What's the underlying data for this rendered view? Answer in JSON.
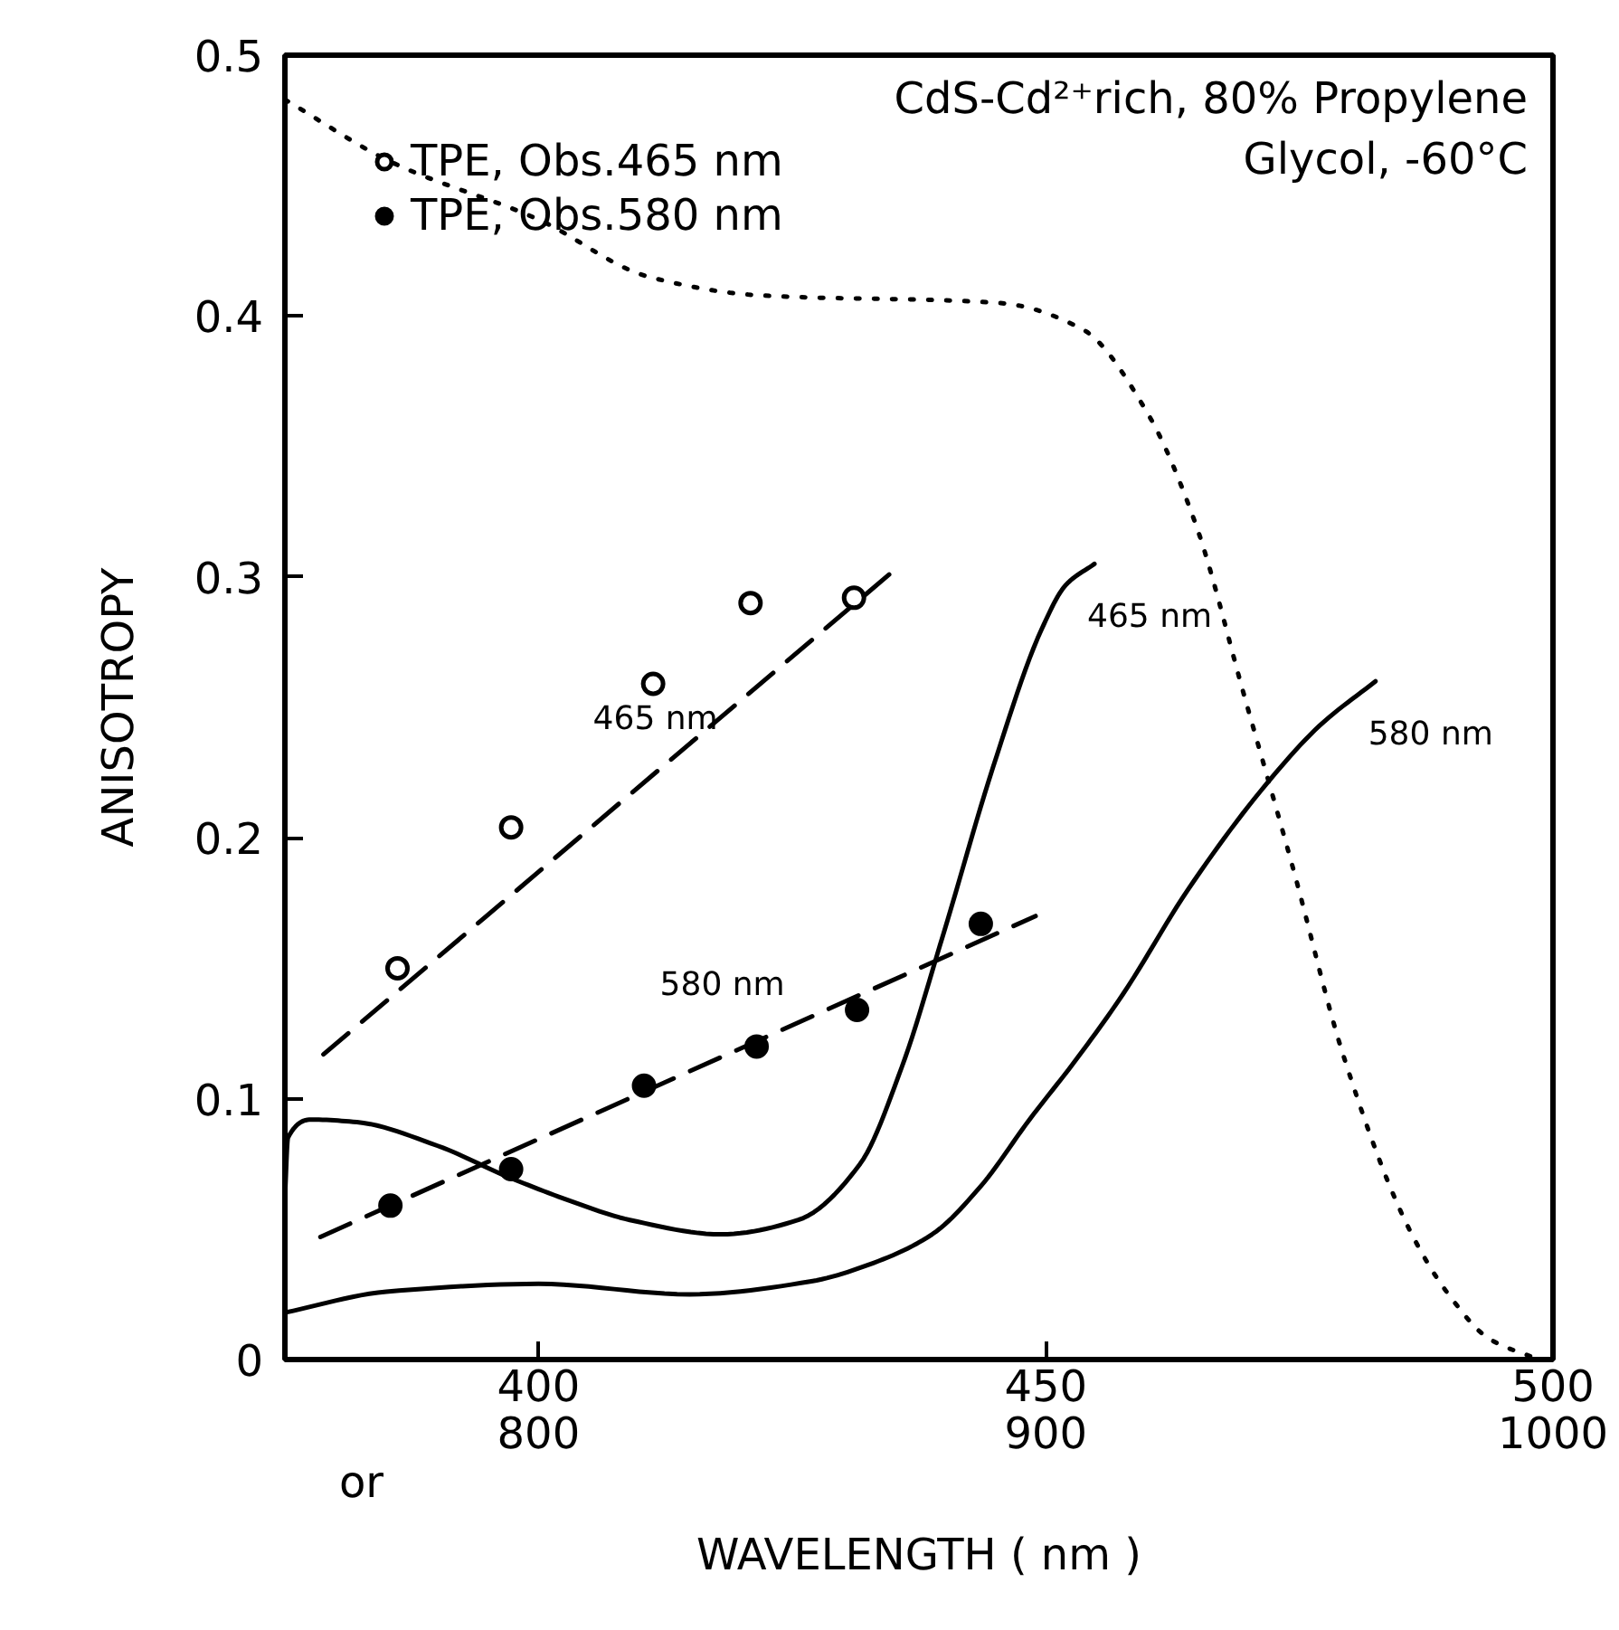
{
  "chart_data": {
    "type": "line",
    "xlabel": "WAVELENGTH ( nm )",
    "ylabel": "ANISOTROPY",
    "xlim": [
      375,
      500
    ],
    "xticks": [
      400,
      450,
      500
    ],
    "ylim": [
      0,
      0.5
    ],
    "yticks": [
      0,
      0.1,
      0.2,
      0.3,
      0.4,
      0.5
    ],
    "x2lim": [
      750,
      1000
    ],
    "x2ticks": [
      800,
      900,
      1000
    ],
    "grid": false,
    "legend": "top left",
    "annotations": [
      "CdS-Cd²⁺rich, 80% Propylene\nGlycol, -60°C",
      "or"
    ],
    "series": [
      {
        "type": "scatter",
        "name": "TPE, Obs.465 nm",
        "color": "#ffffff",
        "marker": "circle",
        "x": [
          386.1,
          397.3,
          411.3,
          420.9,
          431.1
        ],
        "values": [
          0.15,
          0.204,
          0.259,
          0.29,
          0.292
        ]
      },
      {
        "type": "scatter",
        "name": "TPE, Obs.580 nm",
        "color": "#000000",
        "marker": "circle",
        "x": [
          385.4,
          397.3,
          410.4,
          421.5,
          431.4,
          443.6
        ],
        "values": [
          0.059,
          0.073,
          0.105,
          0.12,
          0.134,
          0.167
        ]
      },
      {
        "name": "465 nm",
        "color": "#000000",
        "line_style": "dashed",
        "x": [
          378.8,
          435.5
        ],
        "values": [
          0.117,
          0.304
        ]
      },
      {
        "name": "580 nm",
        "color": "#000000",
        "line_style": "dashed",
        "x": [
          378.5,
          449.0
        ],
        "values": [
          0.047,
          0.17
        ]
      },
      {
        "name": "465 nm",
        "color": "#000000",
        "line_style": "solid",
        "x": [
          375.0,
          375.3,
          377.6,
          382.1,
          390,
          397,
          403,
          409,
          418,
          425.6,
          431.7,
          435.8,
          439.9,
          444.8,
          449.6,
          452,
          454.8
        ],
        "values": [
          0.062,
          0.085,
          0.092,
          0.091,
          0.082,
          0.07,
          0.061,
          0.0535,
          0.048,
          0.0535,
          0.075,
          0.112,
          0.163,
          0.227,
          0.28,
          0.297,
          0.305
        ]
      },
      {
        "name": "580 nm",
        "color": "#000000",
        "line_style": "solid",
        "x": [
          375.0,
          385,
          400,
          414.9,
          426.9,
          433,
          438.8,
          443.5,
          448.4,
          453,
          457.6,
          464,
          471.2,
          477,
          482.5
        ],
        "values": [
          0.018,
          0.026,
          0.029,
          0.025,
          0.03,
          0.037,
          0.048,
          0.066,
          0.092,
          0.115,
          0.14,
          0.18,
          0.218,
          0.243,
          0.26
        ]
      },
      {
        "color": "#000000",
        "line_style": "dotted",
        "x": [
          375.0,
          385.5,
          400,
          410.9,
          421.5,
          445.5,
          453.6,
          460,
          464.8,
          469.6,
          474.4,
          479.3,
          485.7,
          489.7,
          493.7,
          498.6
        ],
        "values": [
          0.483,
          0.459,
          0.437,
          0.415,
          0.408,
          0.405,
          0.395,
          0.363,
          0.32,
          0.254,
          0.188,
          0.117,
          0.051,
          0.025,
          0.008,
          0.0
        ]
      }
    ]
  }
}
